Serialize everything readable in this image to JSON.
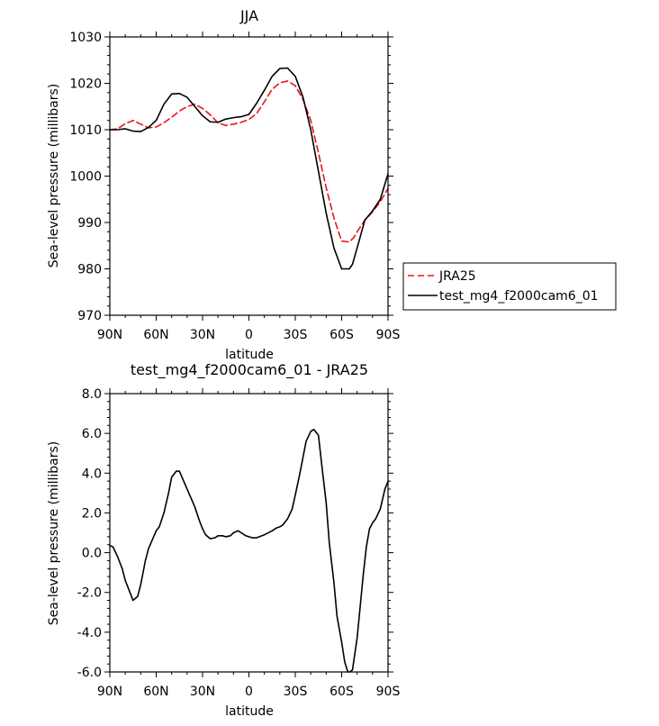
{
  "chart_data": [
    {
      "type": "line",
      "title": "JJA",
      "xlabel": "latitude",
      "ylabel": "Sea-level pressure (millibars)",
      "xlim": [
        90,
        -90
      ],
      "ylim": [
        970,
        1030
      ],
      "xticks": [
        90,
        60,
        30,
        0,
        -30,
        -60,
        -90
      ],
      "xtick_labels": [
        "90N",
        "60N",
        "30N",
        "0",
        "30S",
        "60S",
        "90S"
      ],
      "yticks": [
        970,
        980,
        990,
        1000,
        1010,
        1020,
        1030
      ],
      "ytick_labels": [
        "970",
        "980",
        "990",
        "1000",
        "1010",
        "1020",
        "1030"
      ],
      "legend_position": "right",
      "series": [
        {
          "name": "JRA25",
          "color": "#e8141b",
          "dash": "dashed",
          "x": [
            90,
            85,
            80,
            75,
            70,
            65,
            60,
            55,
            50,
            45,
            40,
            35,
            30,
            25,
            20,
            15,
            10,
            5,
            0,
            -5,
            -10,
            -15,
            -20,
            -25,
            -30,
            -35,
            -40,
            -45,
            -50,
            -55,
            -60,
            -65,
            -68,
            -70,
            -75,
            -80,
            -85,
            -90
          ],
          "y": [
            1010.0,
            1010.2,
            1011.3,
            1012.0,
            1011.2,
            1010.4,
            1010.6,
            1011.5,
            1012.7,
            1014.0,
            1015.0,
            1015.5,
            1014.6,
            1013.2,
            1011.5,
            1010.9,
            1011.2,
            1011.6,
            1012.2,
            1013.5,
            1016.0,
            1018.7,
            1020.1,
            1020.5,
            1019.5,
            1016.5,
            1012.0,
            1005.0,
            997.5,
            991.0,
            986.0,
            985.8,
            986.8,
            988.0,
            990.5,
            992.3,
            994.5,
            997.3
          ]
        },
        {
          "name": "test_mg4_f2000cam6_01",
          "color": "#000000",
          "dash": "solid",
          "x": [
            90,
            85,
            80,
            75,
            70,
            65,
            60,
            55,
            50,
            45,
            40,
            35,
            30,
            25,
            20,
            15,
            10,
            5,
            0,
            -5,
            -10,
            -15,
            -20,
            -25,
            -30,
            -35,
            -40,
            -45,
            -50,
            -55,
            -60,
            -65,
            -67,
            -70,
            -75,
            -80,
            -85,
            -90
          ],
          "y": [
            1010.0,
            1010.0,
            1010.2,
            1009.7,
            1009.6,
            1010.5,
            1012.0,
            1015.5,
            1017.7,
            1017.8,
            1017.0,
            1015.0,
            1013.0,
            1011.7,
            1011.6,
            1012.3,
            1012.6,
            1012.8,
            1013.3,
            1015.7,
            1018.5,
            1021.5,
            1023.2,
            1023.3,
            1021.5,
            1017.0,
            1010.0,
            1001.0,
            992.0,
            984.5,
            980.0,
            980.0,
            981.0,
            984.5,
            990.5,
            992.5,
            995.0,
            1000.5
          ]
        }
      ]
    },
    {
      "type": "line",
      "title": "test_mg4_f2000cam6_01 - JRA25",
      "xlabel": "latitude",
      "ylabel": "Sea-level pressure (millibars)",
      "xlim": [
        90,
        -90
      ],
      "ylim": [
        -6,
        8
      ],
      "xticks": [
        90,
        60,
        30,
        0,
        -30,
        -60,
        -90
      ],
      "xtick_labels": [
        "90N",
        "60N",
        "30N",
        "0",
        "30S",
        "60S",
        "90S"
      ],
      "yticks": [
        -6,
        -4,
        -2,
        0,
        2,
        4,
        6,
        8
      ],
      "ytick_labels": [
        "-6.0",
        "-4.0",
        "-2.0",
        "0.0",
        "2.0",
        "4.0",
        "6.0",
        "8.0"
      ],
      "series": [
        {
          "color": "#000000",
          "dash": "solid",
          "x": [
            90,
            88,
            85,
            82,
            80,
            77,
            75,
            72,
            70,
            67,
            65,
            60,
            58,
            55,
            52,
            50,
            47,
            45,
            40,
            35,
            32,
            30,
            28,
            25,
            22,
            20,
            17,
            15,
            12,
            10,
            7,
            5,
            2,
            0,
            -2,
            -5,
            -10,
            -15,
            -18,
            -20,
            -22,
            -25,
            -28,
            -30,
            -33,
            -35,
            -37,
            -40,
            -42,
            -45,
            -47,
            -50,
            -52,
            -55,
            -57,
            -60,
            -62,
            -64,
            -65,
            -67,
            -70,
            -72,
            -74,
            -76,
            -78,
            -80,
            -82,
            -85,
            -88,
            -90
          ],
          "y": [
            0.35,
            0.3,
            -0.2,
            -0.8,
            -1.4,
            -2.0,
            -2.4,
            -2.2,
            -1.6,
            -0.4,
            0.2,
            1.1,
            1.3,
            2.0,
            3.0,
            3.8,
            4.1,
            4.1,
            3.2,
            2.3,
            1.6,
            1.2,
            0.9,
            0.7,
            0.75,
            0.85,
            0.85,
            0.8,
            0.85,
            1.0,
            1.1,
            1.0,
            0.85,
            0.8,
            0.75,
            0.75,
            0.9,
            1.1,
            1.25,
            1.3,
            1.4,
            1.7,
            2.2,
            2.9,
            4.0,
            4.8,
            5.6,
            6.1,
            6.2,
            5.9,
            4.5,
            2.5,
            0.5,
            -1.5,
            -3.2,
            -4.5,
            -5.5,
            -6.0,
            -6.0,
            -5.9,
            -4.3,
            -2.7,
            -1.1,
            0.3,
            1.2,
            1.5,
            1.7,
            2.2,
            3.2,
            3.6
          ]
        }
      ]
    }
  ],
  "legend": {
    "items": [
      {
        "label": "JRA25",
        "color": "#e8141b",
        "dash": "dashed"
      },
      {
        "label": "test_mg4_f2000cam6_01",
        "color": "#000000",
        "dash": "solid"
      }
    ]
  }
}
